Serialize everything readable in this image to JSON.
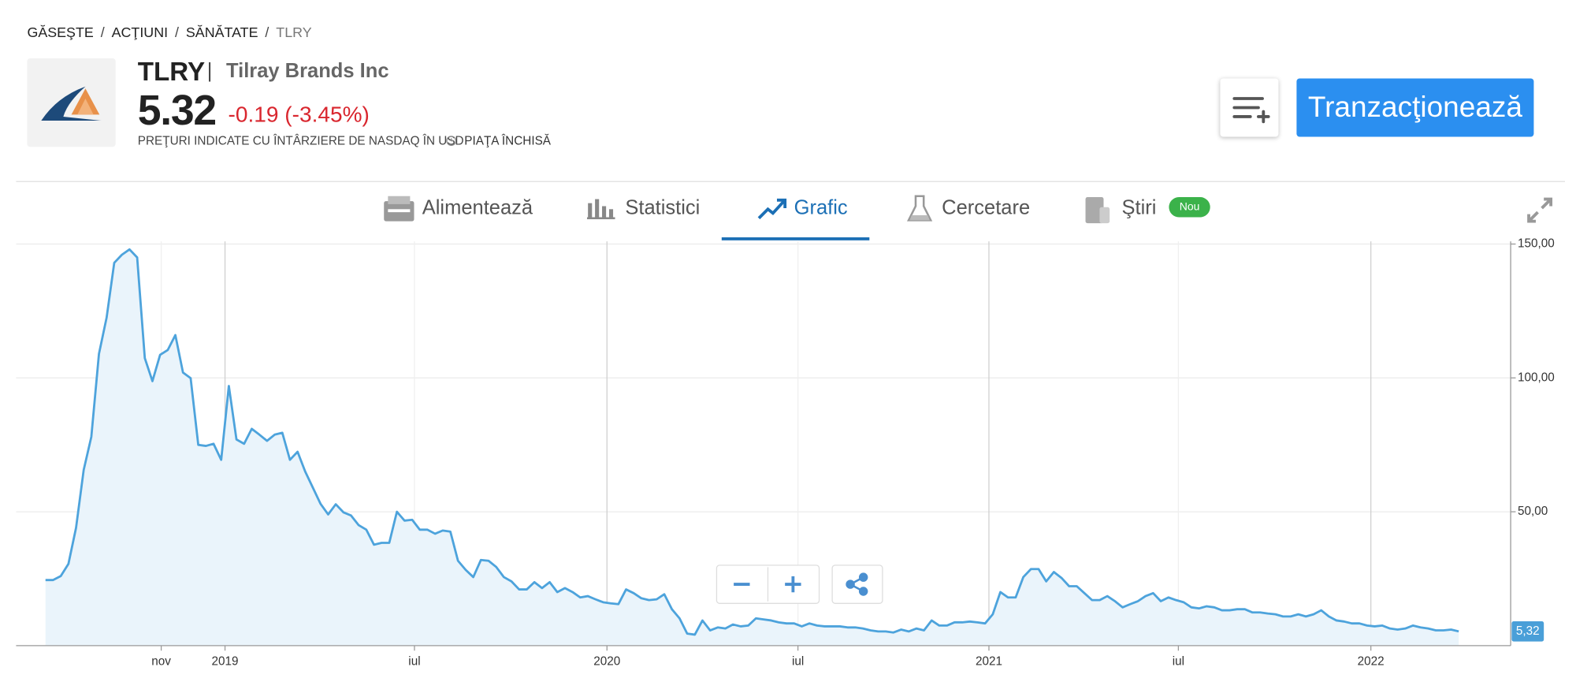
{
  "breadcrumb": [
    "GĂSEŞTE",
    "ACŢIUNI",
    "SĂNĂTATE",
    "TLRY"
  ],
  "header": {
    "symbol": "TLRY",
    "name": "Tilray Brands Inc",
    "price": "5.32",
    "change": "-0.19 (-3.45%)",
    "note": "PREŢURI INDICATE CU ÎNTÂRZIERE DE NASDAQ ÎN USD",
    "market_status": "PIAŢA ÎNCHISĂ",
    "trade_button": "Tranzacţionează"
  },
  "tabs": [
    "Alimentează",
    "Statistici",
    "Grafic",
    "Cercetare",
    "Ştiri"
  ],
  "tab_badge": "Nou",
  "chart_data": {
    "type": "area",
    "color": "#4da3dc",
    "fill": "#eaf4fb",
    "grid": true,
    "xlim": [
      2018.453,
      2022.366
    ],
    "ylim": [
      0,
      151
    ],
    "xticks": [
      {
        "value": 2018.833,
        "label": "nov"
      },
      2019,
      {
        "value": 2019.496,
        "label": "iul"
      },
      2020,
      {
        "value": 2020.5,
        "label": "iul"
      },
      2021,
      {
        "value": 2021.496,
        "label": "iul"
      },
      2022
    ],
    "yticks": [
      {
        "value": 50,
        "label": "50,00"
      },
      {
        "value": 100,
        "label": "100,00"
      },
      {
        "value": 150,
        "label": "150,00"
      }
    ],
    "last_value": {
      "value": 5.32,
      "label": "5,32"
    },
    "x": [
      2018.53,
      2018.55,
      2018.57,
      2018.59,
      2018.61,
      2018.63,
      2018.65,
      2018.67,
      2018.69,
      2018.71,
      2018.73,
      2018.75,
      2018.77,
      2018.79,
      2018.81,
      2018.83,
      2018.85,
      2018.87,
      2018.89,
      2018.91,
      2018.93,
      2018.95,
      2018.97,
      2018.99,
      2019.01,
      2019.03,
      2019.05,
      2019.07,
      2019.09,
      2019.11,
      2019.13,
      2019.15,
      2019.17,
      2019.19,
      2019.21,
      2019.23,
      2019.25,
      2019.27,
      2019.29,
      2019.31,
      2019.33,
      2019.35,
      2019.37,
      2019.39,
      2019.41,
      2019.43,
      2019.45,
      2019.47,
      2019.49,
      2019.51,
      2019.53,
      2019.55,
      2019.57,
      2019.59,
      2019.61,
      2019.63,
      2019.65,
      2019.67,
      2019.69,
      2019.71,
      2019.73,
      2019.75,
      2019.77,
      2019.79,
      2019.81,
      2019.83,
      2019.85,
      2019.87,
      2019.89,
      2019.91,
      2019.93,
      2019.95,
      2019.97,
      2019.99,
      2020.01,
      2020.03,
      2020.05,
      2020.07,
      2020.09,
      2020.11,
      2020.13,
      2020.15,
      2020.17,
      2020.19,
      2020.21,
      2020.23,
      2020.25,
      2020.27,
      2020.29,
      2020.31,
      2020.33,
      2020.35,
      2020.37,
      2020.39,
      2020.41,
      2020.43,
      2020.45,
      2020.47,
      2020.49,
      2020.51,
      2020.53,
      2020.55,
      2020.57,
      2020.59,
      2020.61,
      2020.63,
      2020.65,
      2020.67,
      2020.69,
      2020.71,
      2020.73,
      2020.75,
      2020.77,
      2020.79,
      2020.81,
      2020.83,
      2020.85,
      2020.87,
      2020.89,
      2020.91,
      2020.93,
      2020.95,
      2020.97,
      2020.99,
      2021.01,
      2021.03,
      2021.05,
      2021.07,
      2021.09,
      2021.11,
      2021.13,
      2021.15,
      2021.17,
      2021.19,
      2021.21,
      2021.23,
      2021.25,
      2021.27,
      2021.29,
      2021.31,
      2021.33,
      2021.35,
      2021.37,
      2021.39,
      2021.41,
      2021.43,
      2021.45,
      2021.47,
      2021.49,
      2021.51,
      2021.53,
      2021.55,
      2021.57,
      2021.59,
      2021.61,
      2021.63,
      2021.65,
      2021.67,
      2021.69,
      2021.71,
      2021.73,
      2021.75,
      2021.77,
      2021.79,
      2021.81,
      2021.83,
      2021.85,
      2021.87,
      2021.89,
      2021.91,
      2021.93,
      2021.95,
      2021.97,
      2021.99,
      2022.01,
      2022.03,
      2022.05,
      2022.07,
      2022.09,
      2022.11,
      2022.13,
      2022.15,
      2022.17,
      2022.19,
      2022.21,
      2022.23
    ],
    "values": [
      24.5,
      24.5,
      26,
      30.5,
      44,
      65.6,
      78,
      109,
      122.5,
      143,
      146,
      148,
      145,
      107.4,
      98.8,
      108.6,
      110.4,
      116,
      102,
      99.9,
      75,
      74.6,
      75.4,
      69.4,
      97,
      77,
      75.4,
      81,
      78.8,
      76.5,
      78.8,
      79.5,
      69.4,
      72.4,
      65,
      59,
      53,
      49,
      52.8,
      49.8,
      48.6,
      45,
      43.3,
      37.7,
      38.4,
      38.4,
      50,
      46.7,
      47,
      43.3,
      43.3,
      41.8,
      43,
      42.6,
      31.7,
      28.3,
      25.6,
      32,
      31.7,
      29.4,
      25.6,
      24,
      21,
      21,
      23.7,
      21.5,
      23.7,
      20,
      21.5,
      20,
      18,
      18.5,
      17.3,
      16.2,
      15.8,
      15.5,
      21,
      19.6,
      17.7,
      17,
      17.3,
      19.2,
      13.6,
      10.2,
      4.5,
      4.1,
      9.4,
      5.7,
      6.8,
      6.4,
      7.9,
      7.2,
      7.5,
      10.2,
      9.8,
      9.4,
      8.7,
      8.3,
      8.3,
      7.2,
      8.3,
      7.5,
      7.2,
      7.2,
      7.2,
      6.8,
      6.8,
      6.4,
      5.7,
      5.3,
      5.3,
      4.9,
      6,
      5.3,
      6.4,
      5.7,
      9.4,
      7.5,
      7.5,
      8.7,
      8.7,
      9,
      8.7,
      8.3,
      11.7,
      20,
      18,
      18,
      25.6,
      28.6,
      28.6,
      24,
      27.5,
      25.3,
      22.2,
      22.2,
      19.6,
      17,
      17,
      18.5,
      16.6,
      14.3,
      15.5,
      16.6,
      18.5,
      19.6,
      16.6,
      18,
      17,
      16.2,
      14.3,
      13.9,
      14.7,
      14.3,
      13.2,
      13.2,
      13.6,
      13.6,
      12.4,
      12.4,
      12,
      11.7,
      10.9,
      10.9,
      11.7,
      10.9,
      11.7,
      13.2,
      10.9,
      9.4,
      9,
      8.3,
      8.3,
      7.5,
      7.2,
      7.5,
      6.4,
      6,
      6.4,
      7.5,
      6.8,
      6.4,
      5.7,
      5.7,
      6,
      5.32
    ]
  }
}
